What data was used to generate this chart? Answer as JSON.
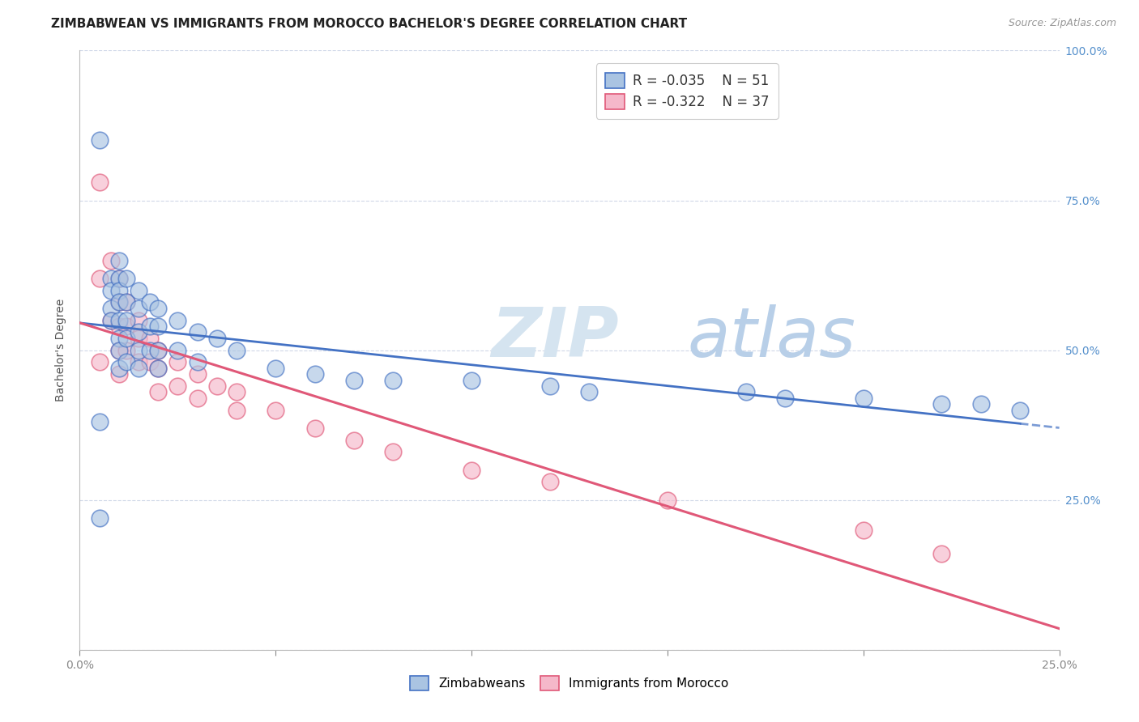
{
  "title": "ZIMBABWEAN VS IMMIGRANTS FROM MOROCCO BACHELOR'S DEGREE CORRELATION CHART",
  "source": "Source: ZipAtlas.com",
  "ylabel": "Bachelor's Degree",
  "xlim": [
    0.0,
    0.25
  ],
  "ylim": [
    0.0,
    1.0
  ],
  "blue_color": "#aac4e2",
  "pink_color": "#f5b8ca",
  "blue_line_color": "#4472c4",
  "pink_line_color": "#e05878",
  "watermark_zip": "ZIP",
  "watermark_atlas": "atlas",
  "watermark_color_zip": "#d5e4f0",
  "watermark_color_atlas": "#b8cfe8",
  "background_color": "#ffffff",
  "grid_color": "#d0d8e8",
  "zimbabwe_x": [
    0.005,
    0.005,
    0.005,
    0.008,
    0.008,
    0.008,
    0.008,
    0.01,
    0.01,
    0.01,
    0.01,
    0.01,
    0.01,
    0.01,
    0.01,
    0.012,
    0.012,
    0.012,
    0.012,
    0.012,
    0.015,
    0.015,
    0.015,
    0.015,
    0.015,
    0.018,
    0.018,
    0.018,
    0.02,
    0.02,
    0.02,
    0.02,
    0.025,
    0.025,
    0.03,
    0.03,
    0.035,
    0.04,
    0.05,
    0.06,
    0.07,
    0.08,
    0.1,
    0.12,
    0.13,
    0.17,
    0.18,
    0.2,
    0.22,
    0.23,
    0.24
  ],
  "zimbabwe_y": [
    0.85,
    0.38,
    0.22,
    0.62,
    0.6,
    0.57,
    0.55,
    0.65,
    0.62,
    0.6,
    0.58,
    0.55,
    0.52,
    0.5,
    0.47,
    0.62,
    0.58,
    0.55,
    0.52,
    0.48,
    0.6,
    0.57,
    0.53,
    0.5,
    0.47,
    0.58,
    0.54,
    0.5,
    0.57,
    0.54,
    0.5,
    0.47,
    0.55,
    0.5,
    0.53,
    0.48,
    0.52,
    0.5,
    0.47,
    0.46,
    0.45,
    0.45,
    0.45,
    0.44,
    0.43,
    0.43,
    0.42,
    0.42,
    0.41,
    0.41,
    0.4
  ],
  "morocco_x": [
    0.005,
    0.005,
    0.005,
    0.008,
    0.008,
    0.01,
    0.01,
    0.01,
    0.01,
    0.01,
    0.012,
    0.012,
    0.012,
    0.015,
    0.015,
    0.015,
    0.018,
    0.018,
    0.02,
    0.02,
    0.02,
    0.025,
    0.025,
    0.03,
    0.03,
    0.035,
    0.04,
    0.04,
    0.05,
    0.06,
    0.07,
    0.08,
    0.1,
    0.12,
    0.15,
    0.2,
    0.22
  ],
  "morocco_y": [
    0.78,
    0.62,
    0.48,
    0.65,
    0.55,
    0.62,
    0.58,
    0.54,
    0.5,
    0.46,
    0.58,
    0.54,
    0.5,
    0.55,
    0.52,
    0.48,
    0.52,
    0.48,
    0.5,
    0.47,
    0.43,
    0.48,
    0.44,
    0.46,
    0.42,
    0.44,
    0.43,
    0.4,
    0.4,
    0.37,
    0.35,
    0.33,
    0.3,
    0.28,
    0.25,
    0.2,
    0.16
  ],
  "title_fontsize": 11,
  "axis_label_fontsize": 10,
  "tick_fontsize": 10,
  "legend_fontsize": 12,
  "source_fontsize": 9
}
